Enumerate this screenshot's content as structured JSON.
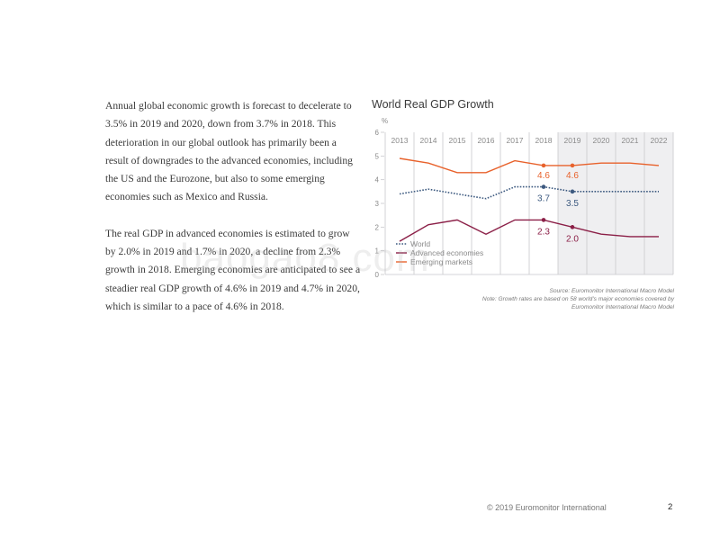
{
  "body_text": {
    "paragraph_1": "Annual global economic growth is forecast to decelerate to 3.5% in 2019 and 2020, down from 3.7% in 2018. This deterioration in our global outlook has primarily been a result of downgrades to the advanced economies, including the US and the Eurozone, but also to some emerging economies such as Mexico and Russia.",
    "paragraph_2": "The real GDP in advanced economies is estimated to grow by 2.0% in 2019 and 1.7% in 2020, a decline from 2.3% growth in 2018. Emerging economies are anticipated to see a steadier real GDP growth of 4.6% in 2019 and 4.7% in 2020, which is similar to a pace of 4.6% in 2018."
  },
  "chart_data": {
    "type": "line",
    "title": "World Real GDP Growth",
    "ylabel": "%",
    "xlabel": "",
    "ylim": [
      0,
      6
    ],
    "yticks": [
      0,
      1,
      2,
      3,
      4,
      5,
      6
    ],
    "x": [
      "2013",
      "2014",
      "2015",
      "2016",
      "2017",
      "2018",
      "2019",
      "2020",
      "2021",
      "2022"
    ],
    "forecast_from": "2019",
    "grid": "vertical",
    "legend_position": "bottom-left",
    "series": [
      {
        "name": "World",
        "style": "dotted",
        "color": "#3d5a80",
        "values": [
          3.4,
          3.6,
          3.4,
          3.2,
          3.7,
          3.7,
          3.5,
          3.5,
          3.5,
          3.5
        ],
        "annotations": [
          {
            "x": "2018",
            "label": "3.7"
          },
          {
            "x": "2019",
            "label": "3.5"
          }
        ]
      },
      {
        "name": "Advanced economies",
        "style": "solid",
        "color": "#8b1f47",
        "values": [
          1.4,
          2.1,
          2.3,
          1.7,
          2.3,
          2.3,
          2.0,
          1.7,
          1.6,
          1.6
        ],
        "annotations": [
          {
            "x": "2018",
            "label": "2.3"
          },
          {
            "x": "2019",
            "label": "2.0"
          }
        ]
      },
      {
        "name": "Emerging markets",
        "style": "solid",
        "color": "#e8622c",
        "values": [
          4.9,
          4.7,
          4.3,
          4.3,
          4.8,
          4.6,
          4.6,
          4.7,
          4.7,
          4.6
        ],
        "annotations": [
          {
            "x": "2018",
            "label": "4.6"
          },
          {
            "x": "2019",
            "label": "4.6"
          }
        ]
      }
    ],
    "colors": {
      "forecast_shade": "#efeff1",
      "gridline": "#c8c8cc",
      "axis_text": "#8a8a8a"
    },
    "source": "Source: Euromonitor International Macro Model",
    "note": "Note: Growth rates are based on 58 world's major economies covered by Euromonitor International Macro Model"
  },
  "footer": {
    "copyright": "© 2019 Euromonitor International",
    "page_number": "2"
  },
  "watermark": "baogao8.com"
}
